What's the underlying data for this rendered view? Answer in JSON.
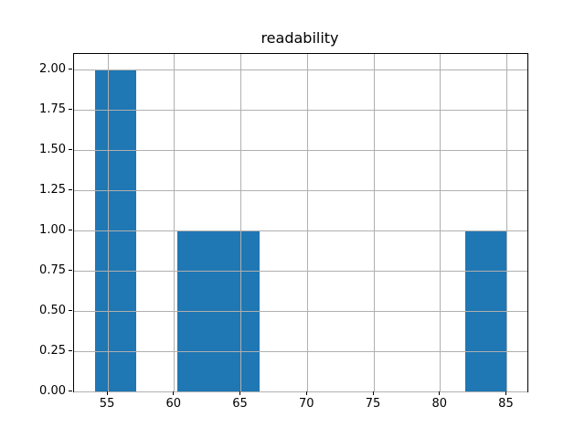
{
  "chart_data": {
    "type": "bar",
    "subtype": "histogram",
    "title": "readability",
    "xlabel": "",
    "ylabel": "",
    "bin_edges": [
      54.0,
      57.1,
      60.2,
      63.3,
      66.4,
      69.5,
      72.6,
      75.7,
      78.8,
      81.9,
      85.0
    ],
    "counts": [
      2,
      0,
      1,
      1,
      0,
      0,
      0,
      0,
      0,
      1
    ],
    "xlim": [
      52.45,
      86.55
    ],
    "ylim": [
      0,
      2.1
    ],
    "x_ticks": [
      55,
      60,
      65,
      70,
      75,
      80,
      85
    ],
    "x_tick_labels": [
      "55",
      "60",
      "65",
      "70",
      "75",
      "80",
      "85"
    ],
    "y_ticks": [
      0.0,
      0.25,
      0.5,
      0.75,
      1.0,
      1.25,
      1.5,
      1.75,
      2.0
    ],
    "y_tick_labels": [
      "0.00",
      "0.25",
      "0.50",
      "0.75",
      "1.00",
      "1.25",
      "1.50",
      "1.75",
      "2.00"
    ],
    "grid": true,
    "grid_above_bars": true,
    "legend": null,
    "colors": {
      "bar": "#1f77b4",
      "grid": "#b0b0b0",
      "spine": "#000000",
      "text": "#000000",
      "background": "#ffffff"
    }
  }
}
